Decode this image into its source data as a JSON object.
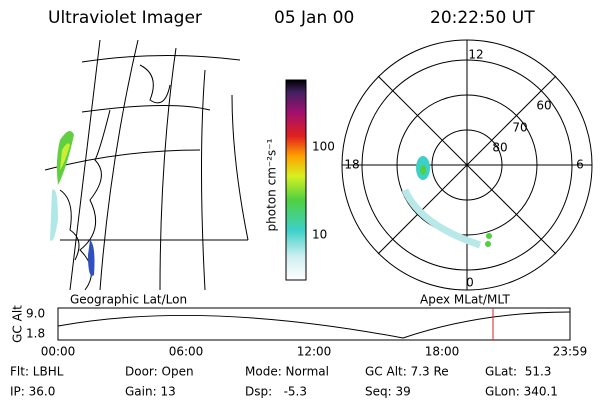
{
  "header": {
    "title": "Ultraviolet Imager",
    "date": "05 Jan 00",
    "time": "20:22:50 UT"
  },
  "colorbar": {
    "label": "photon cm⁻²s⁻¹",
    "ticks": [
      "100",
      "10"
    ]
  },
  "polar": {
    "mlt_labels": [
      "12",
      "18",
      "6",
      "0"
    ],
    "lat_labels": [
      "60",
      "70",
      "80"
    ]
  },
  "captions": {
    "geographic": "Geographic Lat/Lon",
    "apex": "Apex MLat/MLT"
  },
  "altitude": {
    "label": "GC Alt",
    "yticks": [
      "9.0",
      "1.8"
    ],
    "xticks": [
      "00:00",
      "06:00",
      "12:00",
      "18:00",
      "23:59"
    ]
  },
  "info": [
    [
      "Flt: LBHL",
      "Door: Open",
      "Mode: Normal",
      "GC Alt: 7.3 Re",
      "GLat:  51.3"
    ],
    [
      "IP: 36.0",
      "Gain: 13",
      "Dsp:   -5.3",
      "Seq: 39",
      "GLon: 340.1"
    ]
  ]
}
